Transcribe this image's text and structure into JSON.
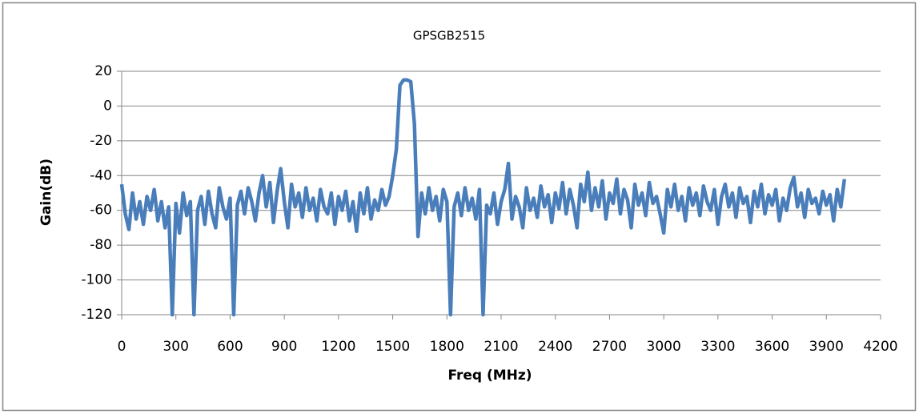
{
  "chart_data": {
    "type": "line",
    "title": "GPSGB2515",
    "x_label": "Freq (MHz)",
    "y_label": "Gain(dB)",
    "x": [
      0,
      20,
      40,
      60,
      80,
      100,
      120,
      140,
      160,
      180,
      200,
      220,
      240,
      260,
      280,
      300,
      320,
      340,
      360,
      380,
      400,
      420,
      440,
      460,
      480,
      500,
      520,
      540,
      560,
      580,
      600,
      620,
      640,
      660,
      680,
      700,
      720,
      740,
      760,
      780,
      800,
      820,
      840,
      860,
      880,
      900,
      920,
      940,
      960,
      980,
      1000,
      1020,
      1040,
      1060,
      1080,
      1100,
      1120,
      1140,
      1160,
      1180,
      1200,
      1220,
      1240,
      1260,
      1280,
      1300,
      1320,
      1340,
      1360,
      1380,
      1400,
      1420,
      1440,
      1460,
      1480,
      1500,
      1520,
      1540,
      1560,
      1580,
      1600,
      1620,
      1640,
      1660,
      1680,
      1700,
      1720,
      1740,
      1760,
      1780,
      1800,
      1820,
      1840,
      1860,
      1880,
      1900,
      1920,
      1940,
      1960,
      1980,
      2000,
      2020,
      2040,
      2060,
      2080,
      2100,
      2120,
      2140,
      2160,
      2180,
      2200,
      2220,
      2240,
      2260,
      2280,
      2300,
      2320,
      2340,
      2360,
      2380,
      2400,
      2420,
      2440,
      2460,
      2480,
      2500,
      2520,
      2540,
      2560,
      2580,
      2600,
      2620,
      2640,
      2660,
      2680,
      2700,
      2720,
      2740,
      2760,
      2780,
      2800,
      2820,
      2840,
      2860,
      2880,
      2900,
      2920,
      2940,
      2960,
      2980,
      3000,
      3020,
      3040,
      3060,
      3080,
      3100,
      3120,
      3140,
      3160,
      3180,
      3200,
      3220,
      3240,
      3260,
      3280,
      3300,
      3320,
      3340,
      3360,
      3380,
      3400,
      3420,
      3440,
      3460,
      3480,
      3500,
      3520,
      3540,
      3560,
      3580,
      3600,
      3620,
      3640,
      3660,
      3680,
      3700,
      3720,
      3740,
      3760,
      3780,
      3800,
      3820,
      3840,
      3860,
      3880,
      3900,
      3920,
      3940,
      3960,
      3980,
      4000
    ],
    "series": [
      {
        "name": "GPSGB2515",
        "color": "#4a7ebb",
        "values": [
          -45,
          -62,
          -71,
          -50,
          -65,
          -55,
          -68,
          -52,
          -60,
          -48,
          -66,
          -55,
          -70,
          -58,
          -120,
          -56,
          -73,
          -50,
          -63,
          -55,
          -120,
          -60,
          -52,
          -68,
          -49,
          -62,
          -70,
          -47,
          -58,
          -65,
          -53,
          -120,
          -57,
          -49,
          -62,
          -47,
          -55,
          -66,
          -50,
          -40,
          -58,
          -44,
          -67,
          -49,
          -36,
          -55,
          -70,
          -45,
          -58,
          -50,
          -64,
          -47,
          -60,
          -53,
          -66,
          -48,
          -58,
          -62,
          -50,
          -68,
          -52,
          -60,
          -49,
          -66,
          -55,
          -72,
          -50,
          -62,
          -47,
          -65,
          -54,
          -60,
          -48,
          -57,
          -52,
          -40,
          -25,
          12,
          15,
          15,
          14,
          -10,
          -75,
          -50,
          -62,
          -47,
          -60,
          -52,
          -66,
          -48,
          -55,
          -120,
          -58,
          -50,
          -63,
          -47,
          -60,
          -53,
          -65,
          -48,
          -120,
          -57,
          -62,
          -50,
          -68,
          -55,
          -48,
          -33,
          -65,
          -52,
          -58,
          -70,
          -47,
          -60,
          -53,
          -64,
          -46,
          -58,
          -51,
          -67,
          -50,
          -59,
          -44,
          -62,
          -48,
          -57,
          -70,
          -45,
          -55,
          -38,
          -60,
          -47,
          -58,
          -43,
          -65,
          -50,
          -56,
          -42,
          -62,
          -48,
          -54,
          -70,
          -45,
          -57,
          -50,
          -63,
          -44,
          -56,
          -52,
          -62,
          -73,
          -48,
          -58,
          -45,
          -60,
          -52,
          -66,
          -47,
          -57,
          -50,
          -63,
          -46,
          -55,
          -60,
          -48,
          -68,
          -52,
          -45,
          -58,
          -50,
          -64,
          -47,
          -56,
          -52,
          -67,
          -49,
          -58,
          -45,
          -62,
          -51,
          -57,
          -48,
          -66,
          -53,
          -60,
          -47,
          -41,
          -58,
          -50,
          -64,
          -48,
          -56,
          -53,
          -62,
          -49,
          -57,
          -51,
          -66,
          -48,
          -58,
          -42
        ]
      }
    ],
    "xlim": [
      0,
      4200
    ],
    "xticks": [
      0,
      300,
      600,
      900,
      1200,
      1500,
      1800,
      2100,
      2400,
      2700,
      3000,
      3300,
      3600,
      3900,
      4200
    ],
    "ylim": [
      -120,
      20
    ],
    "yticks": [
      -120,
      -100,
      -80,
      -60,
      -40,
      -20,
      0,
      20
    ],
    "grid": true
  }
}
